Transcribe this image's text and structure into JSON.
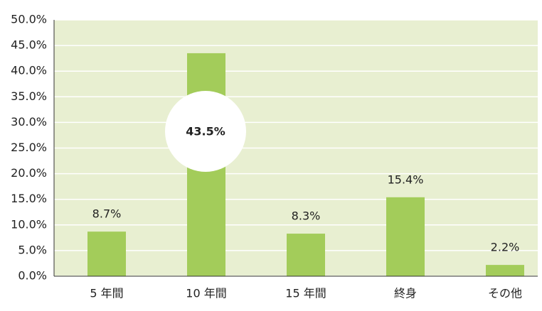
{
  "chart_data": {
    "type": "bar",
    "categories": [
      "5 年間",
      "10 年間",
      "15 年間",
      "終身",
      "その他"
    ],
    "values": [
      8.7,
      43.5,
      8.3,
      15.4,
      2.2
    ],
    "value_labels": [
      "8.7%",
      "43.5%",
      "8.3%",
      "15.4%",
      "2.2%"
    ],
    "color": "#a3cc5a",
    "ylim": [
      0,
      50
    ],
    "yticks": [
      {
        "value": 0,
        "label": "0.0%"
      },
      {
        "value": 5,
        "label": "5.0%"
      },
      {
        "value": 10,
        "label": "10.0%"
      },
      {
        "value": 15,
        "label": "15.0%"
      },
      {
        "value": 20,
        "label": "20.0%"
      },
      {
        "value": 25,
        "label": "25.0%"
      },
      {
        "value": 30,
        "label": "30.0%"
      },
      {
        "value": 35,
        "label": "35.0%"
      },
      {
        "value": 40,
        "label": "40.0%"
      },
      {
        "value": 45,
        "label": "45.0%"
      },
      {
        "value": 50,
        "label": "50.0%"
      }
    ],
    "grid": true
  }
}
